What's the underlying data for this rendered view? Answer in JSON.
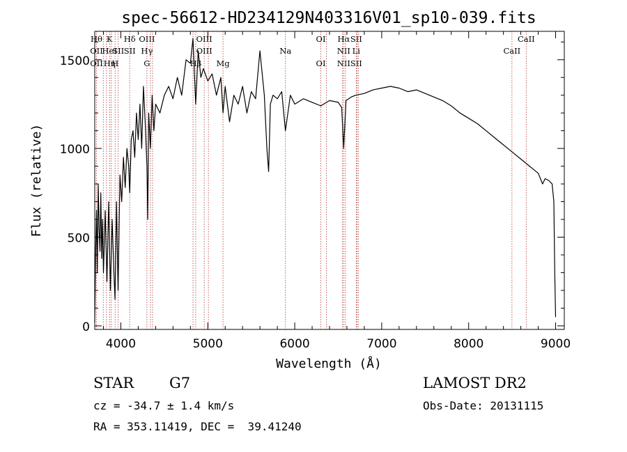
{
  "chart_data": {
    "type": "line",
    "title": "spec-56612-HD234129N403316V01_sp10-039.fits",
    "xlabel": "Wavelength (Å)",
    "ylabel": "Flux (relative)",
    "xlim": [
      3700,
      9100
    ],
    "ylim": [
      -20,
      1660
    ],
    "xticks": [
      4000,
      5000,
      6000,
      7000,
      8000,
      9000
    ],
    "yticks": [
      0,
      500,
      1000,
      1500
    ],
    "grid": false,
    "series": [
      {
        "x": [
          3700,
          3710,
          3720,
          3730,
          3740,
          3750,
          3760,
          3770,
          3780,
          3790,
          3800,
          3820,
          3840,
          3860,
          3880,
          3900,
          3920,
          3933,
          3950,
          3968,
          3990,
          4010,
          4030,
          4050,
          4070,
          4090,
          4102,
          4120,
          4140,
          4160,
          4180,
          4200,
          4220,
          4240,
          4260,
          4280,
          4300,
          4310,
          4320,
          4340,
          4360,
          4380,
          4400,
          4450,
          4500,
          4550,
          4600,
          4650,
          4700,
          4750,
          4800,
          4830,
          4861,
          4890,
          4920,
          4950,
          5000,
          5050,
          5100,
          5150,
          5175,
          5200,
          5250,
          5300,
          5350,
          5400,
          5450,
          5500,
          5550,
          5600,
          5650,
          5680,
          5700,
          5720,
          5750,
          5800,
          5850,
          5893,
          5950,
          6000,
          6100,
          6200,
          6300,
          6400,
          6500,
          6540,
          6563,
          6590,
          6650,
          6700,
          6800,
          6900,
          7000,
          7100,
          7200,
          7300,
          7400,
          7500,
          7600,
          7700,
          7800,
          7900,
          8000,
          8100,
          8200,
          8300,
          8400,
          8500,
          8600,
          8700,
          8800,
          8850,
          8880,
          8920,
          8960,
          8980,
          8990,
          9000
        ],
        "values": [
          20,
          400,
          650,
          300,
          800,
          550,
          420,
          750,
          380,
          600,
          300,
          650,
          250,
          700,
          200,
          600,
          300,
          150,
          700,
          200,
          850,
          700,
          950,
          780,
          1000,
          900,
          750,
          1050,
          1100,
          950,
          1200,
          1050,
          1250,
          1000,
          1350,
          1150,
          900,
          600,
          1200,
          1000,
          1300,
          1100,
          1250,
          1200,
          1300,
          1350,
          1280,
          1400,
          1300,
          1500,
          1480,
          1620,
          1250,
          1550,
          1400,
          1450,
          1380,
          1420,
          1300,
          1400,
          1200,
          1350,
          1150,
          1300,
          1250,
          1350,
          1200,
          1320,
          1280,
          1550,
          1300,
          1000,
          870,
          1250,
          1300,
          1280,
          1320,
          1100,
          1300,
          1250,
          1280,
          1260,
          1240,
          1270,
          1260,
          1230,
          1000,
          1270,
          1290,
          1300,
          1310,
          1330,
          1340,
          1350,
          1340,
          1320,
          1330,
          1310,
          1290,
          1270,
          1240,
          1200,
          1170,
          1140,
          1100,
          1060,
          1020,
          980,
          940,
          900,
          860,
          800,
          830,
          820,
          800,
          700,
          300,
          50
        ]
      }
    ],
    "lines": [
      {
        "x": 3720,
        "labels": [
          "Hθ",
          "OII",
          "OII"
        ]
      },
      {
        "x": 3798,
        "labels": []
      },
      {
        "x": 3835,
        "labels": []
      },
      {
        "x": 3870,
        "labels": [
          "K",
          "HeI",
          "Hη"
        ]
      },
      {
        "x": 3889,
        "labels": []
      },
      {
        "x": 3934,
        "labels": [
          "",
          "",
          "H"
        ]
      },
      {
        "x": 3970,
        "labels": [
          "",
          "SII",
          ""
        ]
      },
      {
        "x": 4102,
        "labels": [
          "Hδ",
          "SII",
          ""
        ]
      },
      {
        "x": 4300,
        "labels": [
          "OIII",
          "Hγ",
          "G"
        ]
      },
      {
        "x": 4340,
        "labels": []
      },
      {
        "x": 4364,
        "labels": []
      },
      {
        "x": 4830,
        "labels": []
      },
      {
        "x": 4861,
        "labels": [
          "",
          "",
          "Hβ"
        ]
      },
      {
        "x": 4959,
        "labels": [
          "OIII",
          "OIII",
          ""
        ]
      },
      {
        "x": 5007,
        "labels": []
      },
      {
        "x": 5175,
        "labels": [
          "",
          "",
          "Mg"
        ]
      },
      {
        "x": 5893,
        "labels": [
          "",
          "Na",
          ""
        ]
      },
      {
        "x": 6300,
        "labels": [
          "OI",
          "",
          "OI"
        ]
      },
      {
        "x": 6364,
        "labels": []
      },
      {
        "x": 6548,
        "labels": []
      },
      {
        "x": 6563,
        "labels": [
          "Hα",
          "NII",
          "NII"
        ]
      },
      {
        "x": 6583,
        "labels": []
      },
      {
        "x": 6707,
        "labels": [
          "SII",
          "Li",
          "SII"
        ]
      },
      {
        "x": 6717,
        "labels": []
      },
      {
        "x": 6731,
        "labels": []
      },
      {
        "x": 8498,
        "labels": [
          "",
          "CaII",
          ""
        ]
      },
      {
        "x": 8662,
        "labels": [
          "CaII",
          "",
          ""
        ]
      }
    ]
  },
  "info": {
    "object_class": "STAR",
    "subclass": "G7",
    "survey": "LAMOST DR2",
    "velocity": "cz = -34.7 ± 1.4 km/s",
    "obs_date": "Obs-Date: 20131115",
    "coords": "RA = 353.11419, DEC =  39.41240"
  }
}
